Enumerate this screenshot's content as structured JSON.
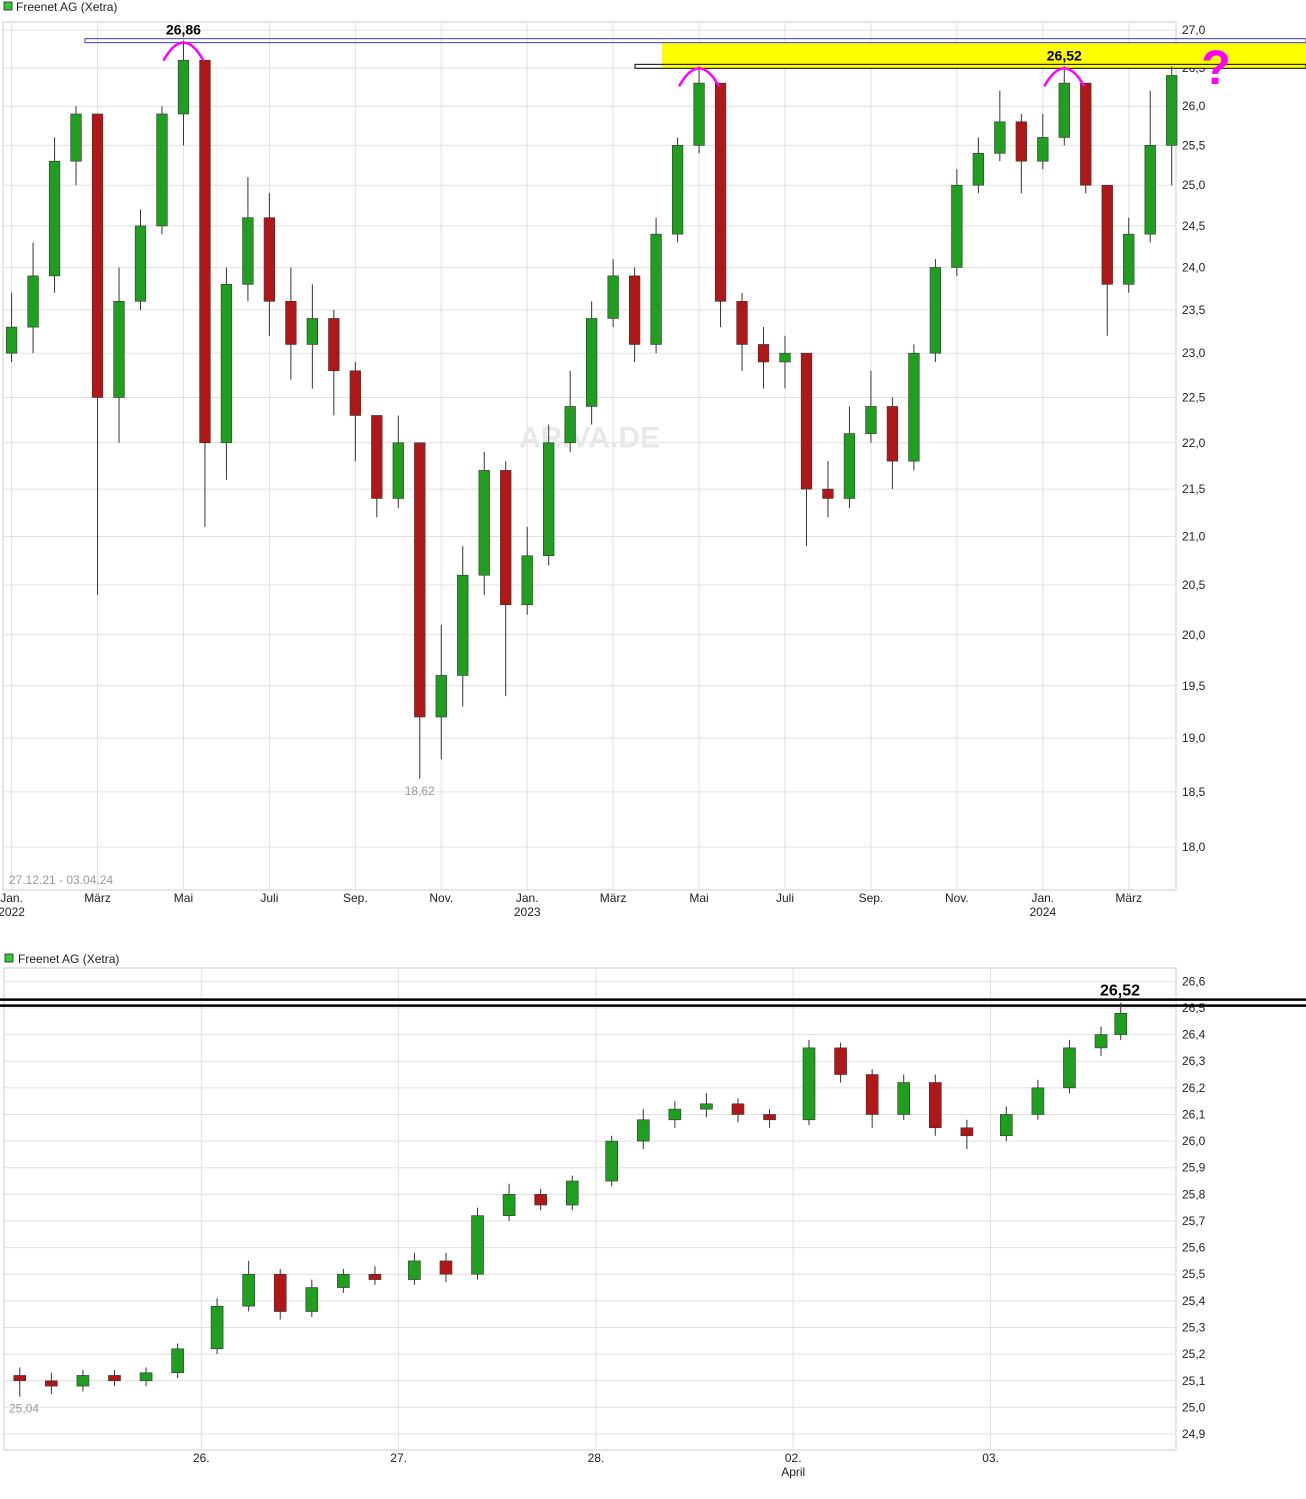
{
  "chart_data": [
    {
      "type": "candlestick",
      "title": "Freenet AG (Xetra)",
      "range_label": "27.12.21 - 03.04.24",
      "watermark": "ARIVA.DE",
      "log_scale": true,
      "grid": true,
      "up_color": "#1f9e1f",
      "down_color": "#b01818",
      "xlim": [
        -0.2,
        27.1
      ],
      "ylim": [
        17.62,
        27.11
      ],
      "xticks": [
        {
          "value": 0,
          "label": "Jan."
        },
        {
          "value": 2,
          "label": "März"
        },
        {
          "value": 4,
          "label": "Mai"
        },
        {
          "value": 6,
          "label": "Juli"
        },
        {
          "value": 8,
          "label": "Sep."
        },
        {
          "value": 10,
          "label": "Nov."
        },
        {
          "value": 12,
          "label": "Jan."
        },
        {
          "value": 14,
          "label": "März"
        },
        {
          "value": 16,
          "label": "Mai"
        },
        {
          "value": 18,
          "label": "Juli"
        },
        {
          "value": 20,
          "label": "Sep."
        },
        {
          "value": 22,
          "label": "Nov."
        },
        {
          "value": 24,
          "label": "Jan."
        },
        {
          "value": 26,
          "label": "März"
        }
      ],
      "year_labels": [
        {
          "value": 0,
          "label": "2022"
        },
        {
          "value": 12,
          "label": "2023"
        },
        {
          "value": 24,
          "label": "2024"
        }
      ],
      "yticks": [
        {
          "value": 18,
          "label": "18,0"
        },
        {
          "value": 18.5,
          "label": "18,5"
        },
        {
          "value": 19,
          "label": "19,0"
        },
        {
          "value": 19.5,
          "label": "19,5"
        },
        {
          "value": 20,
          "label": "20,0"
        },
        {
          "value": 20.5,
          "label": "20,5"
        },
        {
          "value": 21,
          "label": "21,0"
        },
        {
          "value": 21.5,
          "label": "21,5"
        },
        {
          "value": 22,
          "label": "22,0"
        },
        {
          "value": 22.5,
          "label": "22,5"
        },
        {
          "value": 23,
          "label": "23,0"
        },
        {
          "value": 23.5,
          "label": "23,5"
        },
        {
          "value": 24,
          "label": "24,0"
        },
        {
          "value": 24.5,
          "label": "24,5"
        },
        {
          "value": 25,
          "label": "25,0"
        },
        {
          "value": 25.5,
          "label": "25,5"
        },
        {
          "value": 26,
          "label": "26,0"
        },
        {
          "value": 26.5,
          "label": "26,5"
        },
        {
          "value": 27,
          "label": "27,0"
        }
      ],
      "x": [
        0,
        0.5,
        1,
        1.5,
        2,
        2.5,
        3,
        3.5,
        4,
        4.5,
        5,
        5.5,
        6,
        6.5,
        7,
        7.5,
        8,
        8.5,
        9,
        9.5,
        10,
        10.5,
        11,
        11.5,
        12,
        12.5,
        13,
        13.5,
        14,
        14.5,
        15,
        15.5,
        16,
        16.5,
        17,
        17.5,
        18,
        18.5,
        19,
        19.5,
        20,
        20.5,
        21,
        21.5,
        22,
        22.5,
        23,
        23.5,
        24,
        24.5,
        25,
        25.5,
        26,
        26.5,
        27
      ],
      "open": [
        23.0,
        23.3,
        23.9,
        25.3,
        25.9,
        22.5,
        23.6,
        24.5,
        25.9,
        26.6,
        22.0,
        23.8,
        24.6,
        23.6,
        23.1,
        23.4,
        22.8,
        22.3,
        21.4,
        22.0,
        19.2,
        19.6,
        20.6,
        21.7,
        20.3,
        20.8,
        22.0,
        22.4,
        23.4,
        23.9,
        23.1,
        24.4,
        25.5,
        26.3,
        23.6,
        23.1,
        22.9,
        23.0,
        21.5,
        21.4,
        22.1,
        22.4,
        21.8,
        23.0,
        24.0,
        25.0,
        25.4,
        25.8,
        25.3,
        25.6,
        26.3,
        25.0,
        23.8,
        24.4,
        25.5
      ],
      "high": [
        23.7,
        24.3,
        25.6,
        26.0,
        25.9,
        24.0,
        24.7,
        26.0,
        26.86,
        26.6,
        24.0,
        25.1,
        24.9,
        24.0,
        23.8,
        23.5,
        22.9,
        22.3,
        22.3,
        22.0,
        20.1,
        20.9,
        21.9,
        21.8,
        21.1,
        22.2,
        22.8,
        23.6,
        24.1,
        24.0,
        24.6,
        25.6,
        26.52,
        26.3,
        23.7,
        23.3,
        23.2,
        23.0,
        21.8,
        22.4,
        22.8,
        22.5,
        23.1,
        24.1,
        25.2,
        25.6,
        26.2,
        25.9,
        25.9,
        26.52,
        26.3,
        25.0,
        24.6,
        26.2,
        26.52
      ],
      "low": [
        22.9,
        23.0,
        23.7,
        25.0,
        20.4,
        22.0,
        23.5,
        24.4,
        25.5,
        21.1,
        21.6,
        23.6,
        23.2,
        22.7,
        22.6,
        22.3,
        21.8,
        21.2,
        21.3,
        18.62,
        18.8,
        19.3,
        20.4,
        19.4,
        20.2,
        20.7,
        21.9,
        22.2,
        23.3,
        22.9,
        23.0,
        24.3,
        25.4,
        23.3,
        22.8,
        22.6,
        22.6,
        20.9,
        21.2,
        21.3,
        22.0,
        21.5,
        21.7,
        22.9,
        23.9,
        24.9,
        25.3,
        24.9,
        25.2,
        25.5,
        24.9,
        23.2,
        23.7,
        24.3,
        25.0
      ],
      "close": [
        23.3,
        23.9,
        25.3,
        25.9,
        22.5,
        23.6,
        24.5,
        25.9,
        26.6,
        22.0,
        23.8,
        24.6,
        23.6,
        23.1,
        23.4,
        22.8,
        22.3,
        21.4,
        22.0,
        19.2,
        19.6,
        20.6,
        21.7,
        20.3,
        20.8,
        22.0,
        22.4,
        23.4,
        23.9,
        23.1,
        24.4,
        25.5,
        26.3,
        23.6,
        23.1,
        22.9,
        23.0,
        21.5,
        21.4,
        22.1,
        22.4,
        21.8,
        23.0,
        24.0,
        25.0,
        25.4,
        25.8,
        25.3,
        25.6,
        26.3,
        25.0,
        23.8,
        24.4,
        25.5,
        26.4
      ],
      "peaks": [
        {
          "x": 4,
          "value": 26.86,
          "label": "26,86"
        },
        {
          "x": 16,
          "value": 26.52
        },
        {
          "x": 24.5,
          "value": 26.52,
          "label": "26,52"
        }
      ],
      "low_label": {
        "x": 9.5,
        "value": 18.62,
        "label": "18,62"
      },
      "resistance_line": {
        "value": 26.86,
        "color": "#3a3ad0"
      },
      "support_line": {
        "value": 26.52,
        "color": "#000000"
      },
      "highlight_band": {
        "from": 26.5,
        "to": 26.83,
        "color": "#ffff00"
      },
      "question_mark": "?",
      "annotation_color": "#ff00ff"
    },
    {
      "type": "candlestick",
      "title": "Freenet AG (Xetra)",
      "log_scale": false,
      "grid": true,
      "up_color": "#1f9e1f",
      "down_color": "#b01818",
      "xlim": [
        0,
        5.94
      ],
      "ylim": [
        24.84,
        26.65
      ],
      "xticks": [
        {
          "value": 1,
          "label": "26."
        },
        {
          "value": 2,
          "label": "27."
        },
        {
          "value": 3,
          "label": "28."
        },
        {
          "value": 4,
          "label": "02."
        },
        {
          "value": 5,
          "label": "03."
        }
      ],
      "month_labels": [
        {
          "value": 4,
          "label": "April"
        }
      ],
      "yticks": [
        {
          "value": 24.9,
          "label": "24,9"
        },
        {
          "value": 25.0,
          "label": "25,0"
        },
        {
          "value": 25.1,
          "label": "25,1"
        },
        {
          "value": 25.2,
          "label": "25,2"
        },
        {
          "value": 25.3,
          "label": "25,3"
        },
        {
          "value": 25.4,
          "label": "25,4"
        },
        {
          "value": 25.5,
          "label": "25,5"
        },
        {
          "value": 25.6,
          "label": "25,6"
        },
        {
          "value": 25.7,
          "label": "25,7"
        },
        {
          "value": 25.8,
          "label": "25,8"
        },
        {
          "value": 25.9,
          "label": "25,9"
        },
        {
          "value": 26.0,
          "label": "26,0"
        },
        {
          "value": 26.1,
          "label": "26,1"
        },
        {
          "value": 26.2,
          "label": "26,2"
        },
        {
          "value": 26.3,
          "label": "26,3"
        },
        {
          "value": 26.4,
          "label": "26,4"
        },
        {
          "value": 26.5,
          "label": "26,5"
        },
        {
          "value": 26.6,
          "label": "26,6"
        }
      ],
      "x": [
        0.08,
        0.24,
        0.4,
        0.56,
        0.72,
        0.88,
        1.08,
        1.24,
        1.4,
        1.56,
        1.72,
        1.88,
        2.08,
        2.24,
        2.4,
        2.56,
        2.72,
        2.88,
        3.08,
        3.24,
        3.4,
        3.56,
        3.72,
        3.88,
        4.08,
        4.24,
        4.4,
        4.56,
        4.72,
        4.88,
        5.08,
        5.24,
        5.4,
        5.56,
        5.66
      ],
      "open": [
        25.12,
        25.1,
        25.08,
        25.12,
        25.1,
        25.13,
        25.22,
        25.38,
        25.5,
        25.36,
        25.45,
        25.5,
        25.48,
        25.55,
        25.5,
        25.72,
        25.8,
        25.76,
        25.85,
        26.0,
        26.08,
        26.12,
        26.14,
        26.1,
        26.08,
        26.35,
        26.25,
        26.1,
        26.22,
        26.05,
        26.02,
        26.1,
        26.2,
        26.35,
        26.4
      ],
      "high": [
        25.15,
        25.13,
        25.14,
        25.14,
        25.15,
        25.24,
        25.41,
        25.55,
        25.52,
        25.48,
        25.52,
        25.53,
        25.58,
        25.58,
        25.75,
        25.84,
        25.82,
        25.87,
        26.02,
        26.12,
        26.15,
        26.18,
        26.16,
        26.12,
        26.38,
        26.37,
        26.27,
        26.25,
        26.25,
        26.08,
        26.13,
        26.23,
        26.38,
        26.43,
        26.52
      ],
      "low": [
        25.04,
        25.05,
        25.06,
        25.08,
        25.08,
        25.11,
        25.2,
        25.36,
        25.33,
        25.34,
        25.43,
        25.46,
        25.46,
        25.47,
        25.48,
        25.7,
        25.74,
        25.74,
        25.83,
        25.97,
        26.05,
        26.09,
        26.07,
        26.05,
        26.06,
        26.22,
        26.05,
        26.08,
        26.02,
        25.97,
        26.0,
        26.08,
        26.18,
        26.32,
        26.38
      ],
      "close": [
        25.1,
        25.08,
        25.12,
        25.1,
        25.13,
        25.22,
        25.38,
        25.5,
        25.36,
        25.45,
        25.5,
        25.48,
        25.55,
        25.5,
        25.72,
        25.8,
        25.76,
        25.85,
        26.0,
        26.08,
        26.12,
        26.14,
        26.1,
        26.08,
        26.35,
        26.25,
        26.1,
        26.22,
        26.05,
        26.02,
        26.1,
        26.2,
        26.35,
        26.4,
        26.48
      ],
      "low_label": {
        "x": 0.08,
        "value": 25.04,
        "label": "25,04"
      },
      "support_line": {
        "value": 26.52,
        "color": "#000000",
        "label": "26,52"
      }
    }
  ]
}
